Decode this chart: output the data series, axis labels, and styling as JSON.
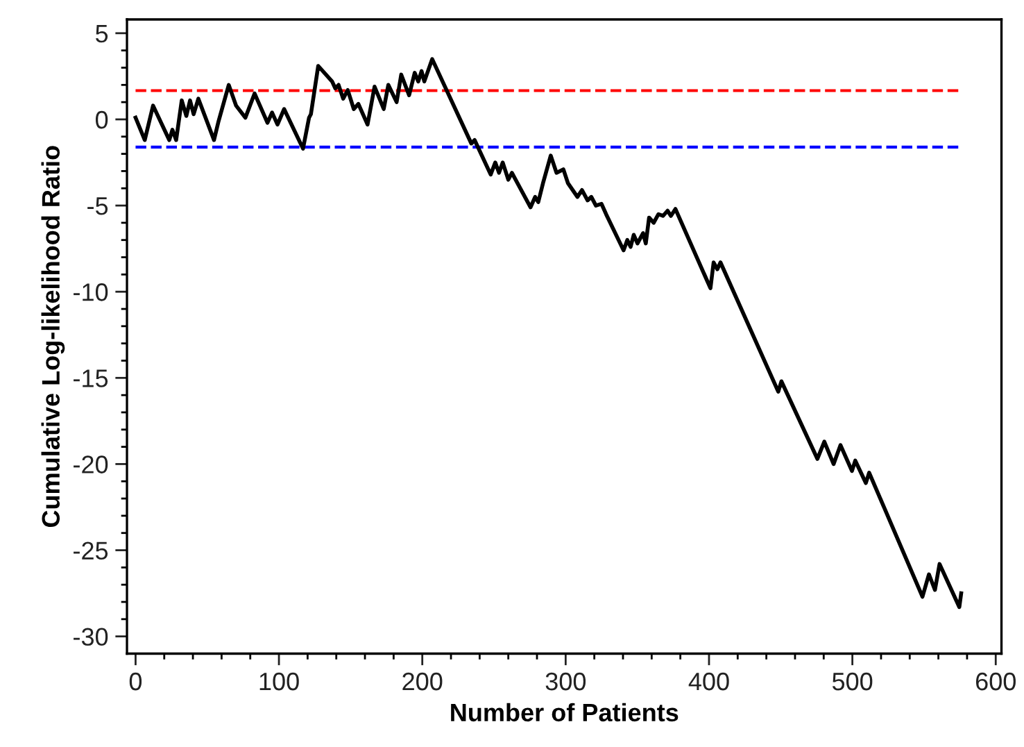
{
  "chart_data": {
    "type": "line",
    "xlabel": "Number of Patients",
    "ylabel": "Cumulative Log-likelihood Ratio",
    "xlim": [
      -6,
      604
    ],
    "ylim": [
      -31,
      5.8
    ],
    "xticks": [
      0,
      100,
      200,
      300,
      400,
      500,
      600,
      {
        "value": 20,
        "label": null
      },
      {
        "value": 40,
        "label": null
      },
      {
        "value": 60,
        "label": null
      },
      {
        "value": 80,
        "label": null
      },
      {
        "value": 120,
        "label": null
      },
      {
        "value": 140,
        "label": null
      },
      {
        "value": 160,
        "label": null
      },
      {
        "value": 180,
        "label": null
      },
      {
        "value": 220,
        "label": null
      },
      {
        "value": 240,
        "label": null
      },
      {
        "value": 260,
        "label": null
      },
      {
        "value": 280,
        "label": null
      },
      {
        "value": 320,
        "label": null
      },
      {
        "value": 340,
        "label": null
      },
      {
        "value": 360,
        "label": null
      },
      {
        "value": 380,
        "label": null
      },
      {
        "value": 420,
        "label": null
      },
      {
        "value": 440,
        "label": null
      },
      {
        "value": 460,
        "label": null
      },
      {
        "value": 480,
        "label": null
      },
      {
        "value": 520,
        "label": null
      },
      {
        "value": 540,
        "label": null
      },
      {
        "value": 560,
        "label": null
      },
      {
        "value": 580,
        "label": null
      }
    ],
    "yticks": [
      5,
      0,
      -5,
      -10,
      -15,
      -20,
      -25,
      -30,
      {
        "value": 4,
        "label": null
      },
      {
        "value": 3,
        "label": null
      },
      {
        "value": 2,
        "label": null
      },
      {
        "value": 1,
        "label": null
      },
      {
        "value": -1,
        "label": null
      },
      {
        "value": -2,
        "label": null
      },
      {
        "value": -3,
        "label": null
      },
      {
        "value": -4,
        "label": null
      },
      {
        "value": -6,
        "label": null
      },
      {
        "value": -7,
        "label": null
      },
      {
        "value": -8,
        "label": null
      },
      {
        "value": -9,
        "label": null
      },
      {
        "value": -11,
        "label": null
      },
      {
        "value": -12,
        "label": null
      },
      {
        "value": -13,
        "label": null
      },
      {
        "value": -14,
        "label": null
      },
      {
        "value": -16,
        "label": null
      },
      {
        "value": -17,
        "label": null
      },
      {
        "value": -18,
        "label": null
      },
      {
        "value": -19,
        "label": null
      },
      {
        "value": -21,
        "label": null
      },
      {
        "value": -22,
        "label": null
      },
      {
        "value": -23,
        "label": null
      },
      {
        "value": -24,
        "label": null
      },
      {
        "value": -26,
        "label": null
      },
      {
        "value": -27,
        "label": null
      },
      {
        "value": -28,
        "label": null
      },
      {
        "value": -29,
        "label": null
      }
    ],
    "grid": false,
    "legend": false,
    "marker": "none",
    "line_style": "solid",
    "ref_lines": [
      {
        "axis": "y",
        "value": 1.67,
        "color": "#ff0000",
        "line_style": "dashed"
      },
      {
        "axis": "y",
        "value": -1.61,
        "color": "#0000ff",
        "line_style": "dashed"
      }
    ],
    "series": [
      {
        "color": "#000000",
        "x": [
          0,
          6.4,
          12.2,
          23.5,
          25.7,
          28.3,
          32.2,
          35.4,
          38,
          40.5,
          43.8,
          54.7,
          57.9,
          65,
          70.1,
          76.6,
          83,
          92,
          95.2,
          99,
          103.6,
          116.8,
          121,
          122.3,
          127.4,
          137.1,
          139.3,
          141.6,
          144.8,
          148,
          152.2,
          155.4,
          161.8,
          166.7,
          173.1,
          176.3,
          182.1,
          185.3,
          190.8,
          194.7,
          197.2,
          199.5,
          201.4,
          206.9,
          234.2,
          236.5,
          247.7,
          250.9,
          253.5,
          256.1,
          260,
          262.5,
          275.5,
          278.7,
          280.9,
          284.2,
          289.6,
          293.6,
          298.4,
          301.6,
          308.2,
          311.4,
          315.3,
          317.9,
          321.1,
          325,
          328.2,
          340.4,
          343,
          345.3,
          347.5,
          350.1,
          354,
          355.9,
          358.2,
          361.4,
          364.7,
          367.9,
          371.1,
          373.4,
          376.6,
          401,
          403.2,
          405.8,
          408,
          448.3,
          450.5,
          475.6,
          480.4,
          486.9,
          491.7,
          499.7,
          502,
          509.4,
          511.7,
          548.9,
          553.4,
          557.6,
          560.8,
          574.6,
          575.9
        ],
        "values": [
          0.1,
          -1.2,
          0.8,
          -1.2,
          -0.6,
          -1.2,
          1.1,
          0.2,
          1.1,
          0.3,
          1.2,
          -1.2,
          -0.1,
          2.0,
          0.8,
          0.1,
          1.5,
          -0.2,
          0.4,
          -0.3,
          0.6,
          -1.7,
          0.1,
          0.3,
          3.1,
          2.2,
          1.8,
          2.0,
          1.2,
          1.7,
          0.6,
          0.9,
          -0.3,
          1.9,
          0.6,
          2.0,
          1.0,
          2.6,
          1.4,
          2.7,
          2.2,
          2.8,
          2.2,
          3.5,
          -1.4,
          -1.2,
          -3.2,
          -2.5,
          -3.1,
          -2.5,
          -3.5,
          -3.1,
          -5.1,
          -4.5,
          -4.8,
          -3.7,
          -2.1,
          -3.1,
          -2.9,
          -3.7,
          -4.5,
          -4.1,
          -4.7,
          -4.5,
          -5.0,
          -4.9,
          -5.5,
          -7.6,
          -7.0,
          -7.4,
          -6.7,
          -7.2,
          -6.6,
          -7.2,
          -5.7,
          -6.0,
          -5.5,
          -5.6,
          -5.3,
          -5.6,
          -5.2,
          -9.8,
          -8.3,
          -8.7,
          -8.3,
          -15.8,
          -15.2,
          -19.7,
          -18.7,
          -20.0,
          -18.9,
          -20.4,
          -19.8,
          -21.1,
          -20.5,
          -27.7,
          -26.4,
          -27.3,
          -25.8,
          -28.3,
          -27.5
        ]
      }
    ]
  }
}
